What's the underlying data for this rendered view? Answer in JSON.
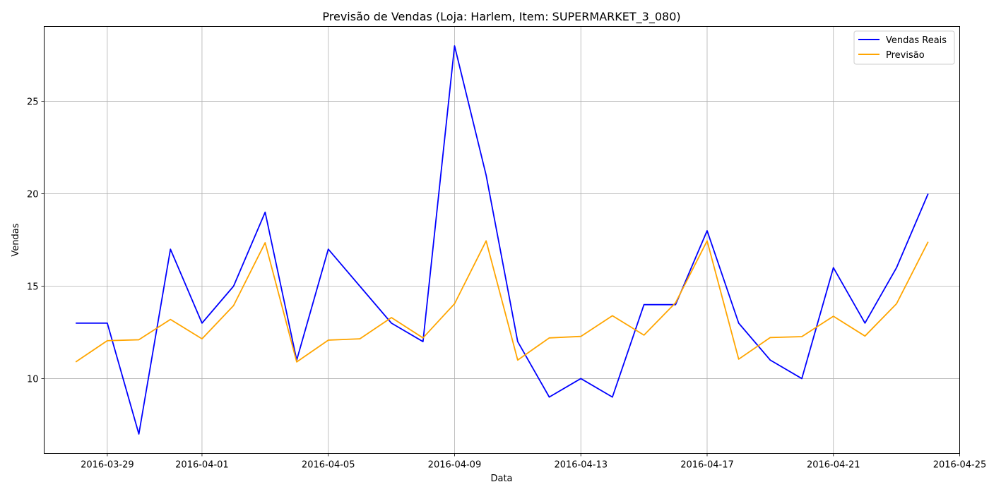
{
  "chart_data": {
    "type": "line",
    "title": "Previsão de Vendas (Loja: Harlem, Item: SUPERMARKET_3_080)",
    "xlabel": "Data",
    "ylabel": "Vendas",
    "x": [
      "2016-03-28",
      "2016-03-29",
      "2016-03-30",
      "2016-03-31",
      "2016-04-01",
      "2016-04-02",
      "2016-04-03",
      "2016-04-04",
      "2016-04-05",
      "2016-04-06",
      "2016-04-07",
      "2016-04-08",
      "2016-04-09",
      "2016-04-10",
      "2016-04-11",
      "2016-04-12",
      "2016-04-13",
      "2016-04-14",
      "2016-04-15",
      "2016-04-16",
      "2016-04-17",
      "2016-04-18",
      "2016-04-19",
      "2016-04-20",
      "2016-04-21",
      "2016-04-22",
      "2016-04-23",
      "2016-04-24"
    ],
    "series": [
      {
        "name": "Vendas Reais",
        "color": "#0000ff",
        "values": [
          13,
          13,
          7,
          17,
          13,
          15,
          19,
          11,
          17,
          15,
          13,
          12,
          28,
          21,
          12,
          9,
          10,
          9,
          14,
          14,
          18,
          13,
          11,
          10,
          16,
          13,
          16,
          20
        ]
      },
      {
        "name": "Previsão",
        "color": "#ffa500",
        "values": [
          10.9,
          12.05,
          12.1,
          13.2,
          12.15,
          13.95,
          17.35,
          10.9,
          12.08,
          12.15,
          13.3,
          12.2,
          14.05,
          17.45,
          11.0,
          12.2,
          12.28,
          13.4,
          12.35,
          14.1,
          17.45,
          11.05,
          12.22,
          12.27,
          13.37,
          12.3,
          14.05,
          17.4
        ]
      }
    ],
    "xticks": [
      "2016-03-29",
      "2016-04-01",
      "2016-04-05",
      "2016-04-09",
      "2016-04-13",
      "2016-04-17",
      "2016-04-21",
      "2016-04-25"
    ],
    "xlim": [
      "2016-03-27",
      "2016-04-25"
    ],
    "yticks": [
      10,
      15,
      20,
      25
    ],
    "ylim": [
      5.95,
      29.05
    ],
    "grid": true,
    "legend_position": "top-right"
  }
}
